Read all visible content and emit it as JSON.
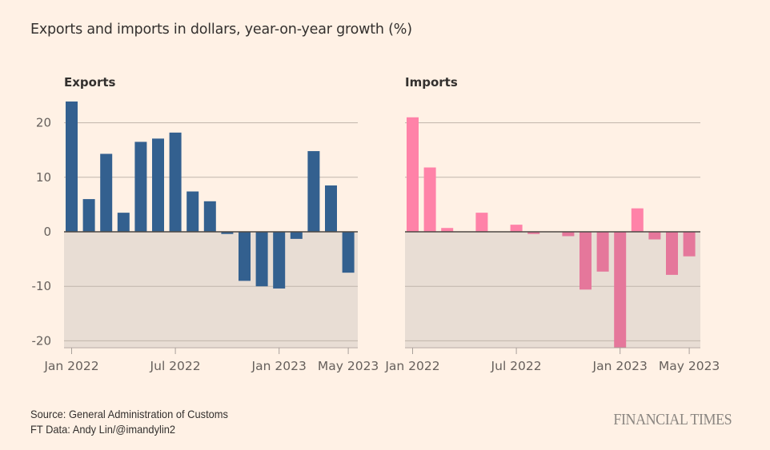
{
  "title": "Exports and imports in dollars, year-on-year growth (%)",
  "footer": {
    "source": "Source: General Administration of Customs",
    "credit": "FT Data: Andy Lin/@imandylin2",
    "logo": "FINANCIAL TIMES"
  },
  "colors": {
    "background": "#fff1e5",
    "negative_band": "#e8ddd4",
    "exports_bar": "#33608f",
    "imports_bar_positive": "#ff82a8",
    "imports_bar_negative": "#e5779b",
    "gridline": "#c0b5ab",
    "zero_line": "#4d4845"
  },
  "chart_data": [
    {
      "type": "bar",
      "title": "Exports",
      "xlabel": "",
      "ylabel": "",
      "ylim": [
        -21.5,
        24
      ],
      "yticks": [
        20,
        10,
        0,
        -10,
        -20
      ],
      "ytick_labels": [
        "20",
        "10",
        "0",
        "-10",
        "-20"
      ],
      "grid": true,
      "categories": [
        "Jan 2022",
        "Feb 2022",
        "Mar 2022",
        "Apr 2022",
        "May 2022",
        "Jun 2022",
        "Jul 2022",
        "Aug 2022",
        "Sep 2022",
        "Oct 2022",
        "Nov 2022",
        "Dec 2022",
        "Jan 2023",
        "Feb 2023",
        "Mar 2023",
        "Apr 2023",
        "May 2023"
      ],
      "xtick_labels": [
        {
          "index": 0,
          "label": "Jan 2022"
        },
        {
          "index": 6,
          "label": "Jul 2022"
        },
        {
          "index": 12,
          "label": "Jan 2023"
        },
        {
          "index": 16,
          "label": "May 2023"
        }
      ],
      "values": [
        23.9,
        6.0,
        14.3,
        3.5,
        16.5,
        17.1,
        18.2,
        7.4,
        5.6,
        -0.4,
        -9.0,
        -10.0,
        -10.4,
        -1.3,
        14.8,
        8.5,
        -7.5
      ]
    },
    {
      "type": "bar",
      "title": "Imports",
      "xlabel": "",
      "ylabel": "",
      "ylim": [
        -21.5,
        24
      ],
      "yticks": [
        20,
        10,
        0,
        -10,
        -20
      ],
      "grid": true,
      "categories": [
        "Jan 2022",
        "Feb 2022",
        "Mar 2022",
        "Apr 2022",
        "May 2022",
        "Jun 2022",
        "Jul 2022",
        "Aug 2022",
        "Sep 2022",
        "Oct 2022",
        "Nov 2022",
        "Dec 2022",
        "Jan 2023",
        "Feb 2023",
        "Mar 2023",
        "Apr 2023",
        "May 2023"
      ],
      "xtick_labels": [
        {
          "index": 0,
          "label": "Jan 2022"
        },
        {
          "index": 6,
          "label": "Jul 2022"
        },
        {
          "index": 12,
          "label": "Jan 2023"
        },
        {
          "index": 16,
          "label": "May 2023"
        }
      ],
      "values": [
        21.0,
        11.8,
        0.7,
        0.0,
        3.5,
        0.0,
        1.3,
        -0.4,
        0.0,
        -0.8,
        -10.6,
        -7.3,
        -21.2,
        4.3,
        -1.4,
        -7.9,
        -4.5
      ]
    }
  ]
}
